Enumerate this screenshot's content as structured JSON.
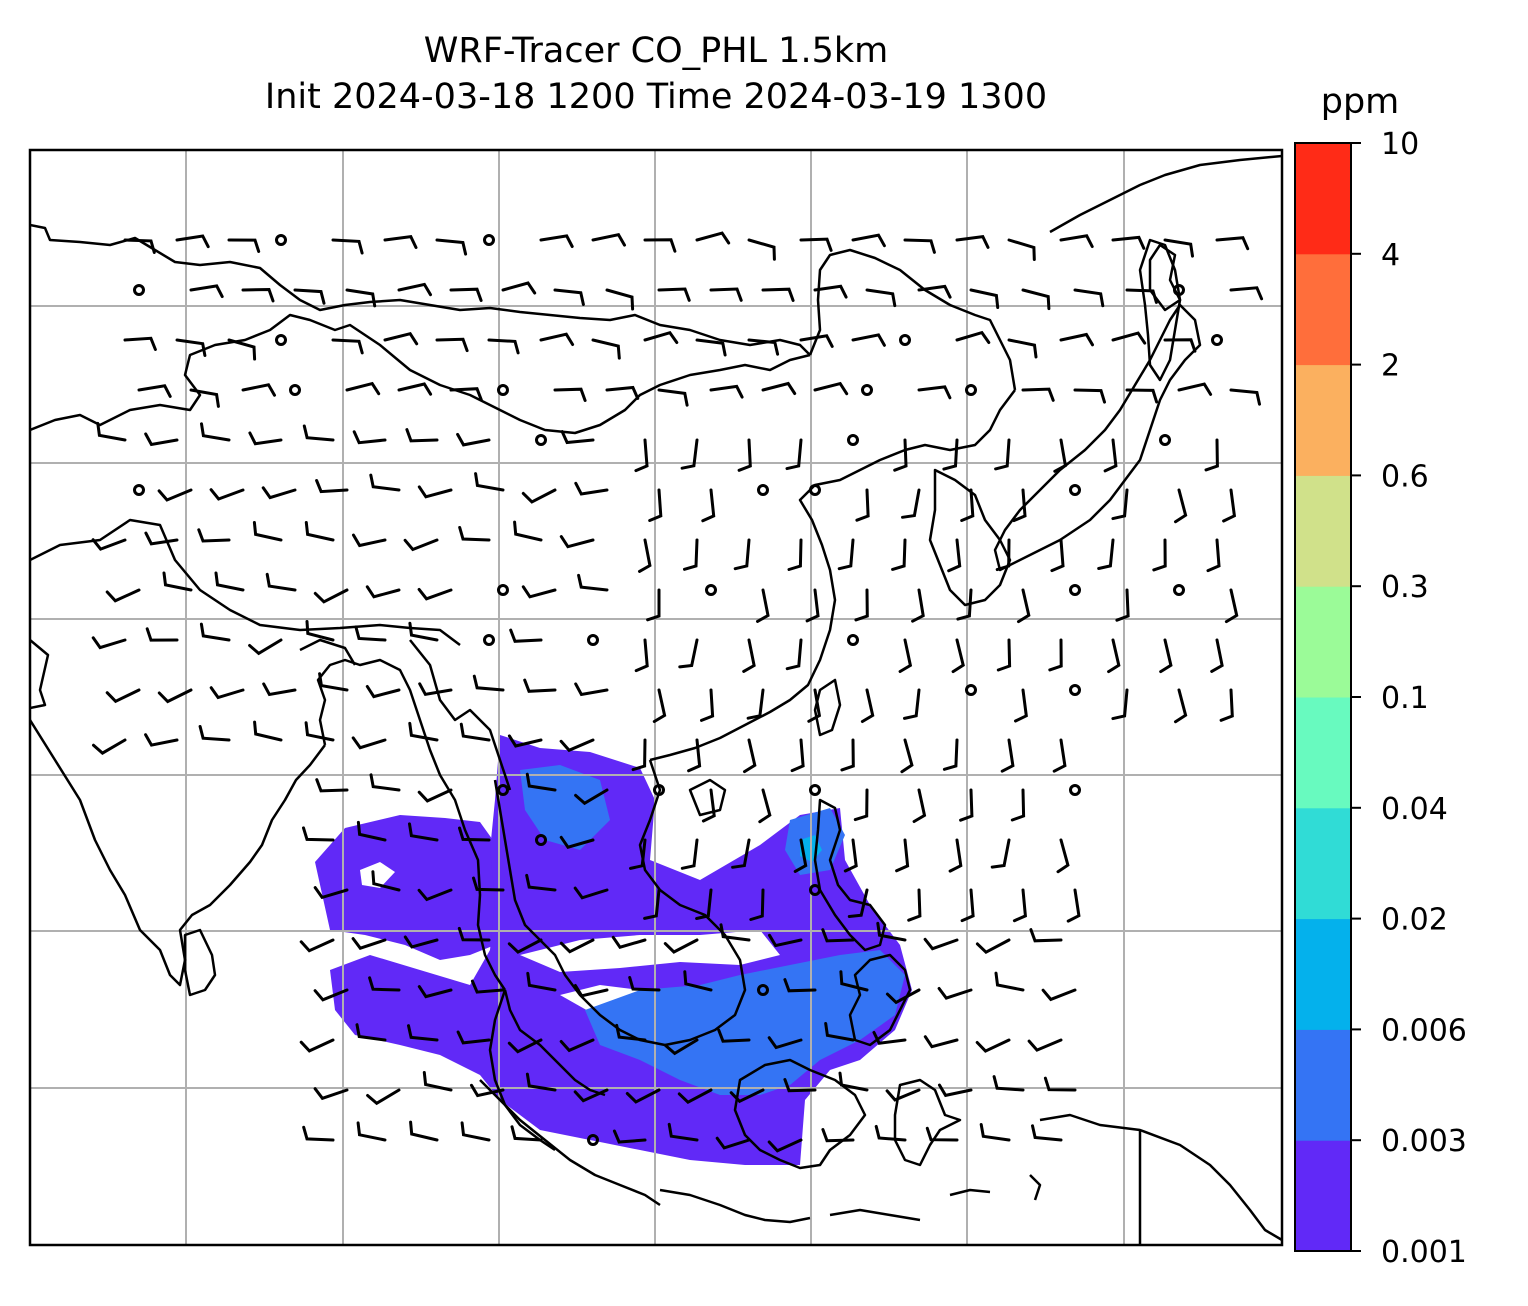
{
  "figure": {
    "title_line1": "WRF-Tracer CO_PHL 1.5km",
    "title_line2": "Init 2024-03-18 1200 Time 2024-03-19 1300"
  },
  "colorbar": {
    "unit": "ppm",
    "levels": [
      "0.001",
      "0.003",
      "0.006",
      "0.02",
      "0.04",
      "0.1",
      "0.3",
      "0.6",
      "2",
      "4",
      "10"
    ],
    "colors": [
      "#6129f7",
      "#3474f4",
      "#04b1ec",
      "#30dcd6",
      "#68fabf",
      "#9bfb98",
      "#d0e18a",
      "#fbb05f",
      "#ff6e3b",
      "#ff2b17"
    ]
  },
  "map": {
    "background": "#ffffff",
    "coastline_color": "#000000",
    "gridline_color": "#b0b0b0",
    "tracer_main_color": "#6129f7",
    "tracer_secondary_color": "#3474f4",
    "tracer_peak_color": "#04b1ec"
  }
}
